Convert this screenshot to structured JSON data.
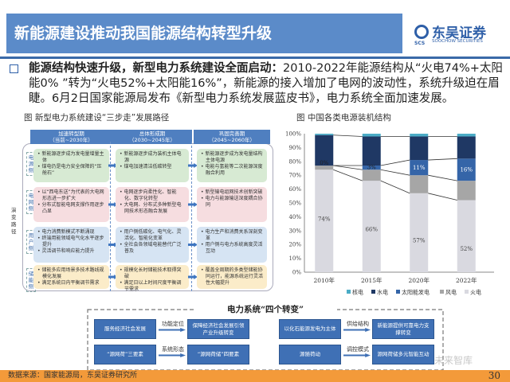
{
  "header": {
    "title": "新能源建设推动我国能源结构转型升级",
    "logo_cn": "东吴证券",
    "logo_en": "SOOCHOW SECURITIES",
    "logo_mark": "SCS"
  },
  "lead": {
    "bold": "能源结构快速升级，新型电力系统建设全面启动：",
    "text": "2010-2022年能源结构从“火电74%+太阳能0% ”转为“火电52%+太阳能16%”，新能源的接入增加了电网的波动性，系统升级迫在眉睫。6月2日国家能源局发布《新型电力系统发展蓝皮书》，电力系统全面加速发展。"
  },
  "diagram": {
    "title": "图  新型电力系统建设“三步走”发展路径",
    "side_label": "演变路径",
    "columns": [
      "加速转型期\n（当前~2030年）",
      "总体形成期\n（2030~2045年）",
      "巩固完善期\n（2045~2060年）"
    ],
    "rows": [
      {
        "label": "电源侧",
        "cells": [
          [
            "新能源逐步成为发电量增量主体",
            "煤电仍是电力安全保障的“压舱石”"
          ],
          [
            "新能源逐步成为装机主体电源",
            "煤电加速清洁低碳转型"
          ],
          [
            "新能源逐步成为发电量结构主体电源",
            "电能与氢能等二次能源深度融合利用"
          ]
        ]
      },
      {
        "label": "电网侧",
        "cells": [
          [
            "以“西电东送”为代表的大电网形态进一步扩大",
            "分布式智能电网支撑作用逐步凸显"
          ],
          [
            "电网逐步向柔性化、智能化、数字化转型",
            "大电网、分布式多种新型电网技术形态融合发展"
          ],
          [
            "新型输电组网技术创新突破",
            "电力与能源输送深度耦合协同"
          ]
        ]
      },
      {
        "label": "用户侧",
        "cells": [
          [
            "电力消费新模式不断涌现",
            "终端用能领域电气化水平逐步提升",
            "灵活调节和响应能力提升"
          ],
          [
            "用户侧低碳化、电气化、灵活化、智能化变革",
            "全社会各领域电能替代广泛普及"
          ],
          [
            "电力生产和消费关系深刻变革",
            "用户侧与电力系统高度灵活互动"
          ]
        ]
      },
      {
        "label": "储能侧",
        "cells": [
          [
            "储能多应用场景多技术路线规模化发展",
            "满足系统日内平衡调节需求"
          ],
          [
            "规模化长时储能技术取得突破",
            "满足日以上时间尺度平衡调节需求"
          ],
          [
            "覆盖全周期的多类型储能协同运行，能源系统运行灵活性大幅提升"
          ]
        ]
      }
    ]
  },
  "chart_data": {
    "type": "bar",
    "stacked": true,
    "title": "图  中国各类电源装机结构",
    "categories": [
      "2010年",
      "2015年",
      "2020年",
      "2022年"
    ],
    "yticks": [
      "0%",
      "10%",
      "20%",
      "30%",
      "40%",
      "50%",
      "60%",
      "70%",
      "80%",
      "90%",
      "100%"
    ],
    "ylim": [
      0,
      100
    ],
    "legend_position": "bottom",
    "series": [
      {
        "name": "火电",
        "values": [
          74,
          66,
          57,
          52
        ],
        "color": "#d9d9e0",
        "labels": [
          "74%",
          "66%",
          "57%",
          "52%"
        ]
      },
      {
        "name": "风电",
        "values": [
          3,
          8,
          13,
          14
        ],
        "color": "#a6a6a6"
      },
      {
        "name": "太阳能发电",
        "values": [
          0,
          3,
          11,
          16
        ],
        "color": "#3565a8",
        "labels": [
          "0%",
          "3%",
          "11%",
          "16%"
        ]
      },
      {
        "name": "水电",
        "values": [
          22,
          21,
          17,
          16
        ],
        "color": "#1f3864"
      },
      {
        "name": "核电",
        "values": [
          1,
          2,
          2,
          2
        ],
        "color": "#4bacc6"
      }
    ],
    "legend_order": [
      "核电",
      "水电",
      "太阳能发电",
      "风电",
      "火电"
    ]
  },
  "transforms": {
    "title": "电力系统“四个转变”",
    "items": [
      {
        "from": "服务经济社会发展",
        "label": "功能定位",
        "to": "保障经济社会发展引领产业升级转变"
      },
      {
        "from": "以化石能源发电为主体",
        "label": "供给结构",
        "to": "新能源提供可靠电力支撑转变"
      },
      {
        "from": "“源网荷”三要素",
        "label": "系统形态",
        "to": "“源网荷储”四要素"
      },
      {
        "from": "源随荷动",
        "label": "调控模式",
        "to": "源网荷储多元智能互动"
      }
    ]
  },
  "watermark": "未来智库",
  "footer": {
    "source": "数据来源：国家能源局，东吴证券研究所",
    "page": "30"
  }
}
